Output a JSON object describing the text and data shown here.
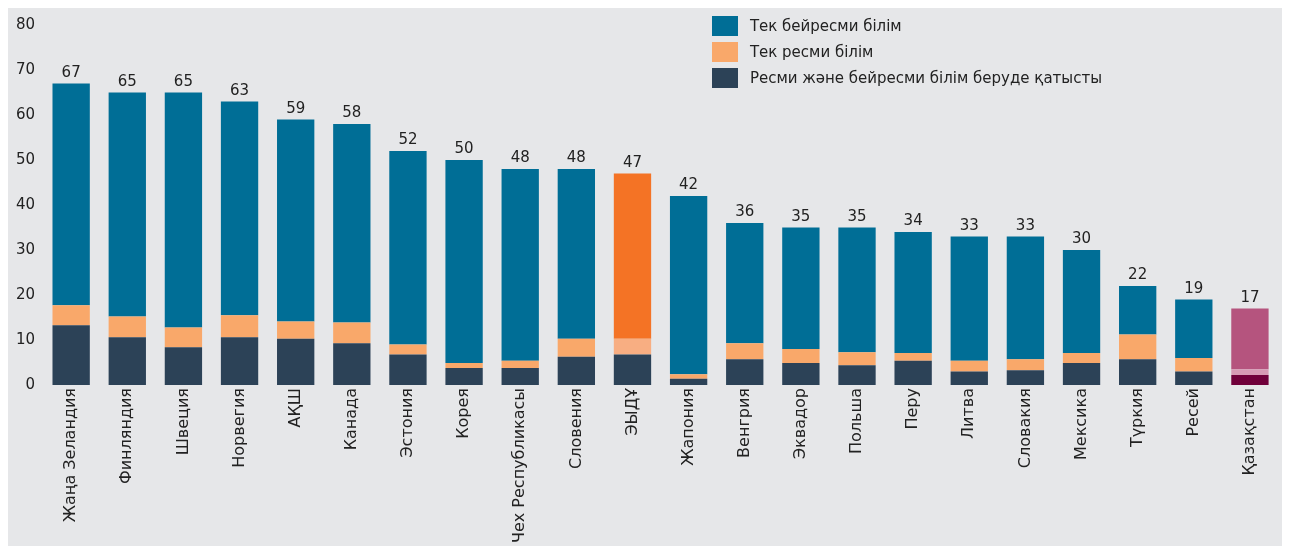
{
  "chart_data": {
    "type": "bar",
    "stacked": true,
    "categories": [
      "Жаңа Зеландия",
      "Финляндия",
      "Швеция",
      "Норвегия",
      "АҚШ",
      "Канада",
      "Эстония",
      "Корея",
      "Чех Республикасы",
      "Словения",
      "ЭЫДҰ",
      "Жапония",
      "Венгрия",
      "Эквадор",
      "Польша",
      "Перу",
      "Литва",
      "Словакия",
      "Мексика",
      "Түркия",
      "Ресей",
      "Қазақстан"
    ],
    "series": [
      {
        "name": "Ресми және бейресми білім беруде қатысты",
        "color": "#2c4257",
        "colors": [
          "#2c4257",
          "#2c4257",
          "#2c4257",
          "#2c4257",
          "#2c4257",
          "#2c4257",
          "#2c4257",
          "#2c4257",
          "#2c4257",
          "#2c4257",
          "#2c4257",
          "#2c4257",
          "#2c4257",
          "#2c4257",
          "#2c4257",
          "#2c4257",
          "#2c4257",
          "#2c4257",
          "#2c4257",
          "#2c4257",
          "#2c4257",
          "#70003a"
        ],
        "values": [
          13.3,
          10.6,
          8.4,
          10.6,
          10.3,
          9.3,
          6.8,
          3.8,
          3.8,
          6.3,
          6.8,
          1.4,
          5.7,
          4.9,
          4.4,
          5.4,
          3.0,
          3.3,
          4.9,
          5.7,
          3.0,
          2.2
        ]
      },
      {
        "name": "Тек ресми білім",
        "color": "#f9a86a",
        "colors": [
          "#f9a86a",
          "#f9a86a",
          "#f9a86a",
          "#f9a86a",
          "#f9a86a",
          "#f9a86a",
          "#f9a86a",
          "#f9a86a",
          "#f9a86a",
          "#f9a86a",
          "#f8ae82",
          "#f9a86a",
          "#f9a86a",
          "#f9a86a",
          "#f9a86a",
          "#f9a86a",
          "#f9a86a",
          "#f9a86a",
          "#f9a86a",
          "#f9a86a",
          "#f9a86a",
          "#d79ab4"
        ],
        "values": [
          4.4,
          4.6,
          4.4,
          4.9,
          3.8,
          4.6,
          2.2,
          1.1,
          1.6,
          4.0,
          3.5,
          1.0,
          3.6,
          3.1,
          2.9,
          1.7,
          2.4,
          2.4,
          2.2,
          5.5,
          3.0,
          1.3
        ]
      },
      {
        "name": "Тек бейресми білім",
        "color": "#006e96",
        "colors": [
          "#006e96",
          "#006e96",
          "#006e96",
          "#006e96",
          "#006e96",
          "#006e96",
          "#006e96",
          "#006e96",
          "#006e96",
          "#006e96",
          "#f47325",
          "#006e96",
          "#006e96",
          "#006e96",
          "#006e96",
          "#006e96",
          "#006e96",
          "#006e96",
          "#006e96",
          "#006e96",
          "#006e96",
          "#b5547e"
        ],
        "values": [
          49.3,
          49.8,
          52.2,
          47.5,
          44.9,
          44.1,
          43.0,
          45.1,
          42.6,
          37.7,
          36.7,
          39.6,
          26.7,
          27.0,
          27.7,
          26.9,
          27.6,
          27.3,
          22.9,
          10.8,
          13.0,
          13.5
        ]
      }
    ],
    "totals": [
      "67",
      "65",
      "65",
      "63",
      "59",
      "58",
      "52",
      "50",
      "48",
      "48",
      "47",
      "42",
      "36",
      "35",
      "35",
      "34",
      "33",
      "33",
      "30",
      "22",
      "19",
      "17"
    ],
    "ylim": [
      0,
      80
    ],
    "yticks": [
      0,
      10,
      20,
      30,
      40,
      50,
      60,
      70,
      80
    ],
    "grid": false,
    "legend": "top right"
  }
}
